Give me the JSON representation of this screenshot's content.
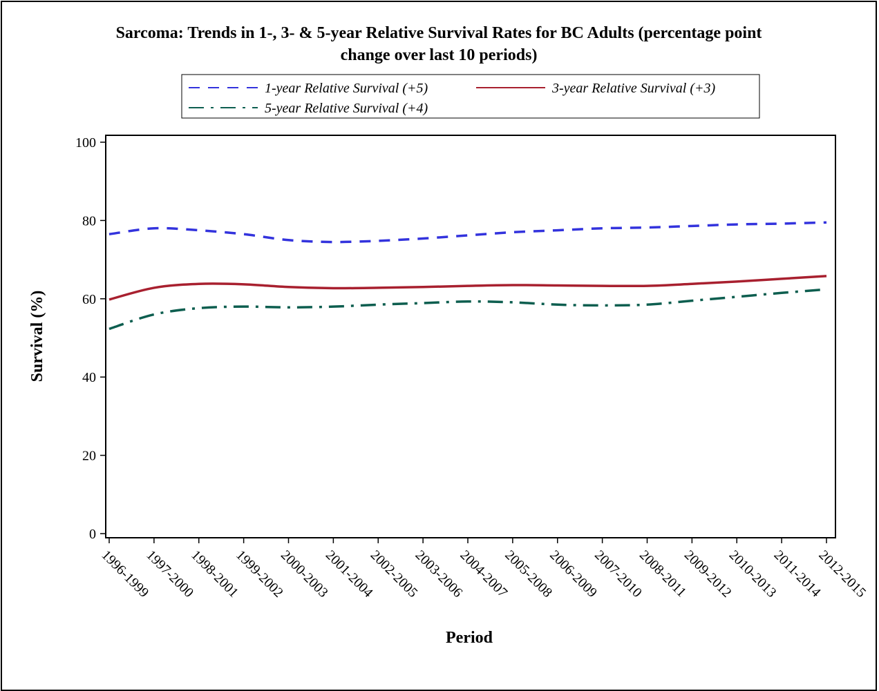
{
  "chart_data": {
    "type": "line",
    "title": "Sarcoma: Trends in 1-, 3- & 5-year Relative Survival Rates for BC Adults (percentage point",
    "subtitle": "change over last 10 periods)",
    "xlabel": "Period",
    "ylabel": "Survival (%)",
    "ylim": [
      0,
      100
    ],
    "yticks": [
      "0",
      "20",
      "40",
      "60",
      "80",
      "100"
    ],
    "grid": false,
    "legend_position": "top",
    "categories": [
      "1996-1999",
      "1997-2000",
      "1998-2001",
      "1999-2002",
      "2000-2003",
      "2001-2004",
      "2002-2005",
      "2003-2006",
      "2004-2007",
      "2005-2008",
      "2006-2009",
      "2007-2010",
      "2008-2011",
      "2009-2012",
      "2010-2013",
      "2011-2014",
      "2012-2015"
    ],
    "series": [
      {
        "name": "1-year Relative Survival (+5)",
        "color": "#3333dd",
        "dash": "dashed",
        "values": [
          76.5,
          78.0,
          77.5,
          76.5,
          75.0,
          74.5,
          74.8,
          75.4,
          76.2,
          77.0,
          77.5,
          78.0,
          78.2,
          78.6,
          79.0,
          79.2,
          79.5
        ]
      },
      {
        "name": "3-year Relative Survival (+3)",
        "color": "#a8202f",
        "dash": "solid",
        "values": [
          59.8,
          62.8,
          63.8,
          63.7,
          63.0,
          62.7,
          62.8,
          63.0,
          63.3,
          63.5,
          63.4,
          63.3,
          63.3,
          63.8,
          64.4,
          65.1,
          65.8
        ]
      },
      {
        "name": "5-year Relative Survival (+4)",
        "color": "#0d5e4f",
        "dash": "dashdot",
        "values": [
          52.3,
          56.0,
          57.6,
          58.0,
          57.8,
          58.0,
          58.5,
          58.9,
          59.3,
          59.1,
          58.5,
          58.3,
          58.5,
          59.5,
          60.5,
          61.5,
          62.4
        ]
      }
    ]
  }
}
